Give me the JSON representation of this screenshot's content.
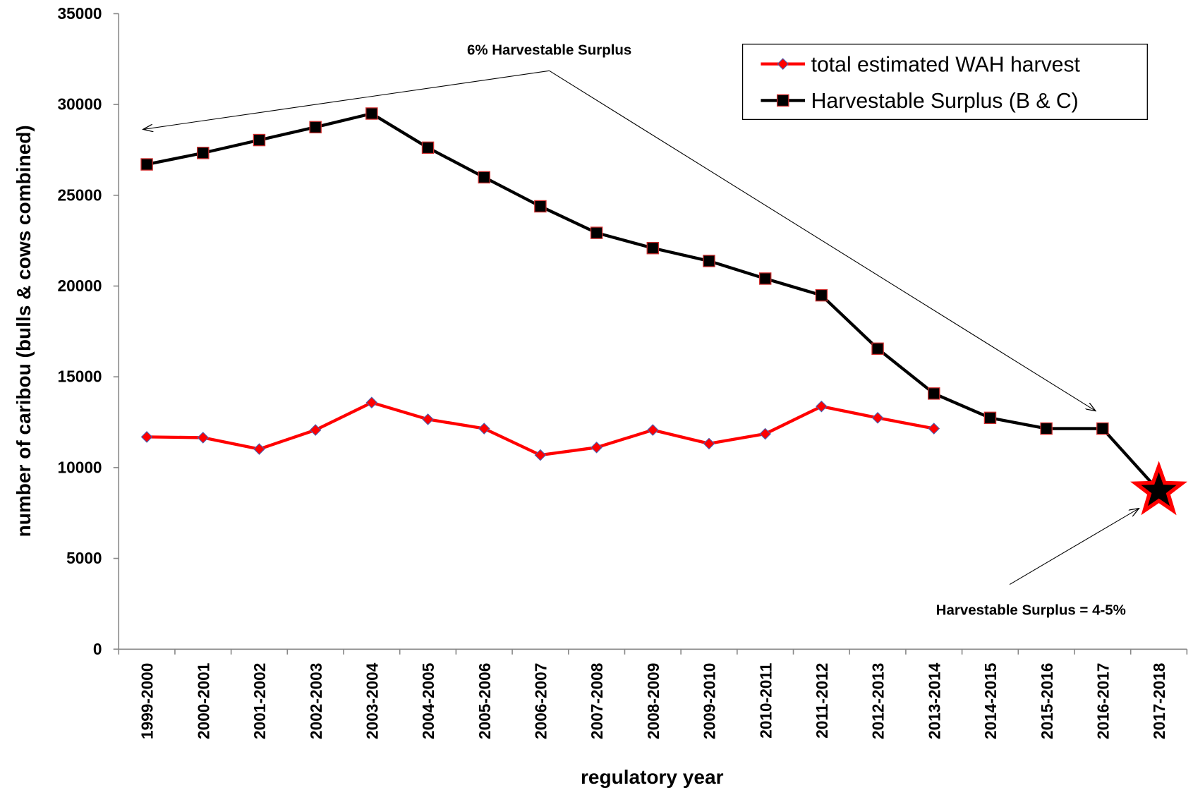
{
  "chart_data": {
    "type": "line",
    "annotations": [
      "6% Harvestable Surplus",
      "Harvestable Surplus = 4-5%"
    ],
    "x_label": "regulatory year",
    "y_label": "number of caribou (bulls & cows combined)",
    "categories": [
      "1999-2000",
      "2000-2001",
      "2001-2002",
      "2002-2003",
      "2003-2004",
      "2004-2005",
      "2005-2006",
      "2006-2007",
      "2007-2008",
      "2008-2009",
      "2009-2010",
      "2010-2011",
      "2011-2012",
      "2012-2013",
      "2013-2014",
      "2014-2015",
      "2015-2016",
      "2016-2017",
      "2017-2018"
    ],
    "series": [
      {
        "name": "total estimated WAH harvest",
        "color": "#ff0000",
        "marker": "diamond",
        "values": [
          11690,
          11650,
          11020,
          12070,
          13580,
          12660,
          12150,
          10690,
          11110,
          12070,
          11320,
          11860,
          13370,
          12740,
          12150,
          null,
          null,
          null,
          null
        ]
      },
      {
        "name": "Harvestable Surplus (B & C)",
        "color": "#000000",
        "marker": "square",
        "values": [
          26700,
          27330,
          28040,
          28750,
          29500,
          27620,
          25990,
          24390,
          22930,
          22090,
          21380,
          20410,
          19490,
          16550,
          14080,
          12740,
          12150,
          12150,
          8720
        ]
      }
    ],
    "ylim": [
      0,
      35000
    ],
    "yticks": [
      0,
      5000,
      10000,
      15000,
      20000,
      25000,
      30000,
      35000
    ],
    "grid": false,
    "legend": "upper right"
  }
}
